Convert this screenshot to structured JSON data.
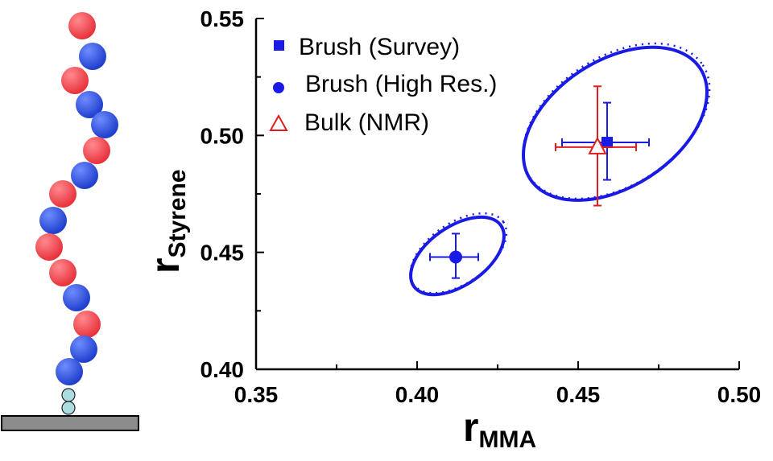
{
  "illustration": {
    "chain_beads": [
      "red",
      "blue",
      "red",
      "blue",
      "blue",
      "red",
      "blue",
      "red",
      "blue",
      "red",
      "red",
      "blue",
      "red",
      "blue",
      "blue"
    ],
    "anchor_beads": [
      "light-blue",
      "light-blue"
    ],
    "colors": {
      "red": "#ee3a44",
      "blue": "#2a4fd8",
      "light-blue": "#a9dde2",
      "substrate": "#8c8c8c"
    }
  },
  "chart_data": {
    "type": "scatter",
    "xlabel_main": "r",
    "xlabel_sub": "MMA",
    "ylabel_main": "r",
    "ylabel_sub": "Styrene",
    "xlim": [
      0.35,
      0.5
    ],
    "ylim": [
      0.4,
      0.55
    ],
    "xticks": [
      "0.35",
      "0.40",
      "0.45",
      "0.50"
    ],
    "yticks": [
      "0.40",
      "0.45",
      "0.50",
      "0.55"
    ],
    "grid": false,
    "legend_position": "top-left",
    "series": [
      {
        "name": "Brush (Survey)",
        "marker": "square",
        "color": "#1a1ae6",
        "filled": true,
        "points": [
          {
            "x": 0.459,
            "y": 0.497,
            "xerr": [
              0.445,
              0.472
            ],
            "yerr": [
              0.481,
              0.514
            ]
          }
        ]
      },
      {
        "name": "Brush (High Res.)",
        "marker": "circle",
        "color": "#1a1ae6",
        "filled": true,
        "points": [
          {
            "x": 0.412,
            "y": 0.448,
            "xerr": [
              0.404,
              0.419
            ],
            "yerr": [
              0.439,
              0.458
            ]
          }
        ]
      },
      {
        "name": "Bulk (NMR)",
        "marker": "triangle",
        "color": "#e01e1e",
        "filled": false,
        "points": [
          {
            "x": 0.456,
            "y": 0.495,
            "xerr": [
              0.443,
              0.468
            ],
            "yerr": [
              0.47,
              0.521
            ]
          }
        ]
      }
    ],
    "confidence_ellipses": [
      {
        "color": "#1a1ae6",
        "cx": 0.4615,
        "cy": 0.505,
        "rx_data": 0.0315,
        "ry_data": 0.027,
        "tilt_deg": -33
      },
      {
        "color": "#1a1ae6",
        "cx": 0.4125,
        "cy": 0.4485,
        "rx_data": 0.0165,
        "ry_data": 0.0125,
        "tilt_deg": -35
      }
    ]
  }
}
